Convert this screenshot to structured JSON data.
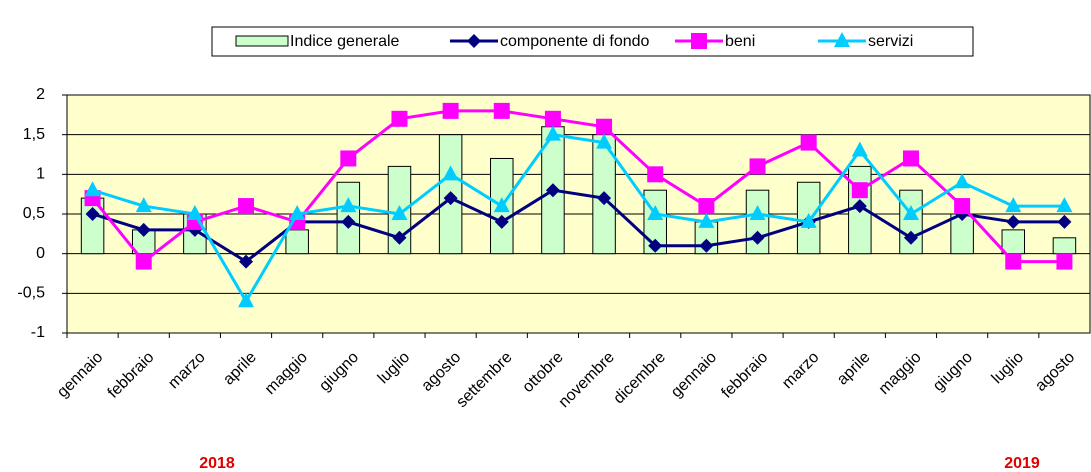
{
  "chart_data": {
    "type": "bar-line",
    "categories": [
      "gennaio",
      "febbraio",
      "marzo",
      "aprile",
      "maggio",
      "giugno",
      "luglio",
      "agosto",
      "settembre",
      "ottobre",
      "novembre",
      "dicembre",
      "gennaio",
      "febbraio",
      "marzo",
      "aprile",
      "maggio",
      "giugno",
      "luglio",
      "agosto"
    ],
    "series": [
      {
        "name": "Indice generale",
        "type": "bar",
        "color": "#ccffcc",
        "values": [
          0.7,
          0.3,
          0.5,
          0.0,
          0.3,
          0.9,
          1.1,
          1.5,
          1.2,
          1.6,
          1.5,
          0.8,
          0.4,
          0.8,
          0.9,
          1.1,
          0.8,
          0.5,
          0.3,
          0.2
        ]
      },
      {
        "name": "componente di fondo",
        "type": "line",
        "marker": "diamond",
        "color": "#000080",
        "values": [
          0.5,
          0.3,
          0.3,
          -0.1,
          0.4,
          0.4,
          0.2,
          0.7,
          0.4,
          0.8,
          0.7,
          0.1,
          0.1,
          0.2,
          0.4,
          0.6,
          0.2,
          0.5,
          0.4,
          0.4
        ]
      },
      {
        "name": "beni",
        "type": "line",
        "marker": "square",
        "color": "#ff00ff",
        "values": [
          0.7,
          -0.1,
          0.4,
          0.6,
          0.4,
          1.2,
          1.7,
          1.8,
          1.8,
          1.7,
          1.6,
          1.0,
          0.6,
          1.1,
          1.4,
          0.8,
          1.2,
          0.6,
          -0.1,
          -0.1
        ]
      },
      {
        "name": "servizi",
        "type": "line",
        "marker": "triangle",
        "color": "#00ccff",
        "values": [
          0.8,
          0.6,
          0.5,
          -0.6,
          0.5,
          0.6,
          0.5,
          1.0,
          0.6,
          1.5,
          1.4,
          0.5,
          0.4,
          0.5,
          0.4,
          1.3,
          0.5,
          0.9,
          0.6,
          0.6
        ]
      }
    ],
    "ylim": [
      -1,
      2
    ],
    "yticks": [
      -1,
      {
        "value": -0.5,
        "label": "-0,5"
      },
      0,
      {
        "value": 0.5,
        "label": "0,5"
      },
      1,
      {
        "value": 1.5,
        "label": "1,5"
      },
      2
    ],
    "grid": true,
    "legend": "top",
    "annotations": [
      "2018",
      "2019"
    ]
  }
}
